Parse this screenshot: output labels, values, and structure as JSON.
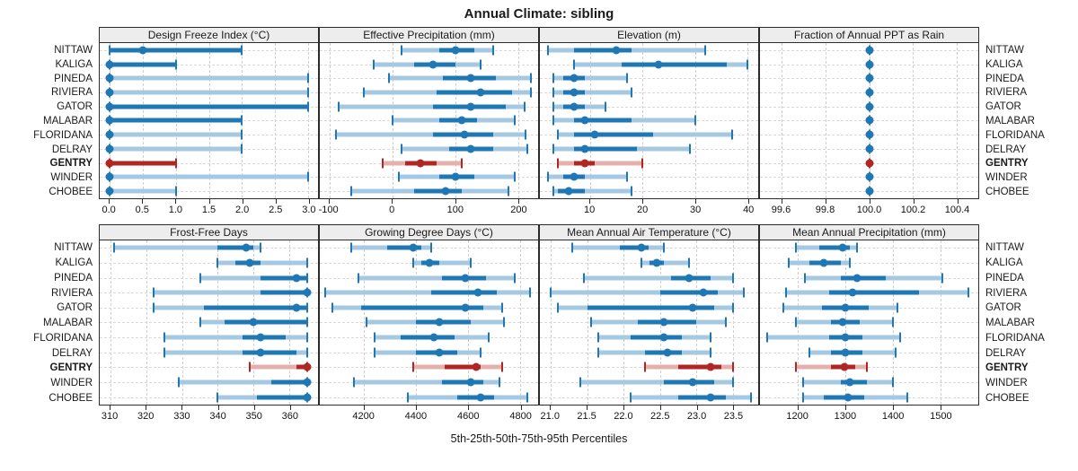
{
  "title": "Annual Climate: sibling",
  "footer": "5th-25th-50th-75th-95th Percentiles",
  "stations": [
    "NITTAW",
    "KALIGA",
    "PINEDA",
    "RIVIERA",
    "GATOR",
    "MALABAR",
    "FLORIDANA",
    "DELRAY",
    "GENTRY",
    "WINDER",
    "CHOBEE"
  ],
  "highlight_station": "GENTRY",
  "colors": {
    "blue": "#1f77b4",
    "blue_light": "#a5c9e3",
    "red": "#b12622",
    "red_light": "#e5b0ac",
    "panel_border": "#2b2b2b",
    "header_bg": "#ededed",
    "grid": "#cfcfcf"
  },
  "chart_data": {
    "type": "scatter",
    "subtype": "percentile-dotplot",
    "percentiles": [
      "5th",
      "25th",
      "50th",
      "75th",
      "95th"
    ],
    "legend_note": "values per station are [p5,p25,p50,p75,p95]; GENTRY highlighted red",
    "grid": "dashed",
    "panels": [
      {
        "row": 0,
        "title": "Design Freeze Index (°C)",
        "xlim": [
          -0.15,
          3.15
        ],
        "tick_values": [
          0,
          0.5,
          1,
          1.5,
          2,
          2.5,
          3
        ],
        "tick_labels": [
          "0.0",
          "0.5",
          "1.0",
          "1.5",
          "2.0",
          "2.5",
          "3.0"
        ],
        "series": [
          [
            0,
            0,
            0.5,
            2,
            2
          ],
          [
            0,
            0,
            0,
            1,
            1
          ],
          [
            0,
            0,
            0,
            0,
            3
          ],
          [
            0,
            0,
            0,
            0,
            3
          ],
          [
            0,
            0,
            0,
            3,
            3
          ],
          [
            0,
            0,
            0,
            2,
            2
          ],
          [
            0,
            0,
            0,
            0,
            2
          ],
          [
            0,
            0,
            0,
            0,
            2
          ],
          [
            0,
            0,
            0,
            1,
            1
          ],
          [
            0,
            0,
            0,
            0,
            3
          ],
          [
            0,
            0,
            0,
            0,
            1
          ]
        ]
      },
      {
        "row": 0,
        "title": "Effective Precipitation (mm)",
        "xlim": [
          -115,
          232
        ],
        "tick_values": [
          -100,
          0,
          100,
          200
        ],
        "tick_labels": [
          "-100",
          "0",
          "100",
          "200"
        ],
        "series": [
          [
            15,
            75,
            100,
            130,
            160
          ],
          [
            -30,
            35,
            65,
            100,
            140
          ],
          [
            -5,
            80,
            125,
            165,
            220
          ],
          [
            -45,
            70,
            140,
            190,
            220
          ],
          [
            -85,
            65,
            125,
            180,
            210
          ],
          [
            0,
            75,
            110,
            135,
            195
          ],
          [
            -90,
            65,
            115,
            160,
            212
          ],
          [
            15,
            90,
            125,
            160,
            215
          ],
          [
            -15,
            20,
            45,
            70,
            110
          ],
          [
            10,
            75,
            100,
            130,
            195
          ],
          [
            -65,
            35,
            85,
            110,
            185
          ]
        ]
      },
      {
        "row": 0,
        "title": "Elevation (m)",
        "xlim": [
          0.5,
          42
        ],
        "tick_values": [
          10,
          20,
          30,
          40
        ],
        "tick_labels": [
          "10",
          "20",
          "30",
          "40"
        ],
        "series": [
          [
            2,
            7,
            15,
            18,
            32
          ],
          [
            7,
            16,
            23,
            36,
            40
          ],
          [
            3,
            5,
            7,
            9,
            17
          ],
          [
            3,
            5,
            7,
            9,
            18
          ],
          [
            3,
            5,
            7,
            9,
            13
          ],
          [
            3,
            7,
            9,
            18,
            30
          ],
          [
            4,
            7,
            11,
            22,
            37
          ],
          [
            3,
            7,
            9,
            19,
            29
          ],
          [
            4,
            7,
            9,
            11,
            20
          ],
          [
            2,
            5,
            7,
            9,
            17
          ],
          [
            3,
            4,
            6,
            9,
            18
          ]
        ]
      },
      {
        "row": 0,
        "title": "Fraction of Annual PPT as Rain",
        "xlim": [
          99.5,
          100.5
        ],
        "tick_values": [
          99.6,
          99.8,
          100.0,
          100.2,
          100.4
        ],
        "tick_labels": [
          "99.6",
          "99.8",
          "100.0",
          "100.2",
          "100.4"
        ],
        "series": [
          [
            100,
            100,
            100,
            100,
            100
          ],
          [
            100,
            100,
            100,
            100,
            100
          ],
          [
            100,
            100,
            100,
            100,
            100
          ],
          [
            100,
            100,
            100,
            100,
            100
          ],
          [
            100,
            100,
            100,
            100,
            100
          ],
          [
            100,
            100,
            100,
            100,
            100
          ],
          [
            100,
            100,
            100,
            100,
            100
          ],
          [
            100,
            100,
            100,
            100,
            100
          ],
          [
            100,
            100,
            100,
            100,
            100
          ],
          [
            100,
            100,
            100,
            100,
            100
          ],
          [
            100,
            100,
            100,
            100,
            100
          ]
        ]
      },
      {
        "row": 1,
        "title": "Frost-Free Days",
        "xlim": [
          307,
          368
        ],
        "tick_values": [
          310,
          320,
          330,
          340,
          350,
          360
        ],
        "tick_labels": [
          "310",
          "320",
          "330",
          "340",
          "350",
          "360"
        ],
        "series": [
          [
            311,
            340,
            348,
            350,
            352
          ],
          [
            340,
            345,
            349,
            352,
            365
          ],
          [
            335,
            352,
            362,
            365,
            365
          ],
          [
            322,
            352,
            365,
            365,
            365
          ],
          [
            322,
            336,
            362,
            365,
            365
          ],
          [
            335,
            342,
            350,
            365,
            365
          ],
          [
            325,
            347,
            352,
            359,
            365
          ],
          [
            325,
            347,
            352,
            362,
            365
          ],
          [
            349,
            362,
            365,
            365,
            365
          ],
          [
            329,
            355,
            365,
            365,
            365
          ],
          [
            340,
            351,
            365,
            365,
            365
          ]
        ]
      },
      {
        "row": 1,
        "title": "Growing Degree Days (°C)",
        "xlim": [
          4030,
          4870
        ],
        "tick_values": [
          4200,
          4400,
          4600,
          4800
        ],
        "tick_labels": [
          "4200",
          "4400",
          "4600",
          "4800"
        ],
        "series": [
          [
            4150,
            4290,
            4390,
            4420,
            4460
          ],
          [
            4390,
            4420,
            4450,
            4490,
            4610
          ],
          [
            4180,
            4500,
            4590,
            4670,
            4780
          ],
          [
            4050,
            4460,
            4640,
            4710,
            4840
          ],
          [
            4080,
            4190,
            4590,
            4660,
            4730
          ],
          [
            4210,
            4400,
            4490,
            4610,
            4740
          ],
          [
            4240,
            4340,
            4470,
            4550,
            4680
          ],
          [
            4240,
            4400,
            4490,
            4560,
            4650
          ],
          [
            4390,
            4510,
            4630,
            4650,
            4730
          ],
          [
            4160,
            4500,
            4610,
            4660,
            4720
          ],
          [
            4370,
            4560,
            4650,
            4700,
            4830
          ]
        ]
      },
      {
        "row": 1,
        "title": "Mean Annual Air Temperature (°C)",
        "xlim": [
          20.85,
          23.85
        ],
        "tick_values": [
          21.0,
          21.5,
          22.0,
          22.5,
          23.0,
          23.5
        ],
        "tick_labels": [
          "21.0",
          "21.5",
          "22.0",
          "22.5",
          "23.0",
          "23.5"
        ],
        "series": [
          [
            21.3,
            21.95,
            22.25,
            22.35,
            22.55
          ],
          [
            22.25,
            22.35,
            22.45,
            22.55,
            22.9
          ],
          [
            21.45,
            22.65,
            22.9,
            23.2,
            23.5
          ],
          [
            21.0,
            22.5,
            23.1,
            23.3,
            23.65
          ],
          [
            21.1,
            21.5,
            22.95,
            23.25,
            23.5
          ],
          [
            21.55,
            22.2,
            22.55,
            23.0,
            23.4
          ],
          [
            21.65,
            22.1,
            22.55,
            22.8,
            23.2
          ],
          [
            21.65,
            22.3,
            22.6,
            22.8,
            23.2
          ],
          [
            22.3,
            22.75,
            23.2,
            23.35,
            23.5
          ],
          [
            21.4,
            22.55,
            22.95,
            23.25,
            23.5
          ],
          [
            22.1,
            22.75,
            23.2,
            23.4,
            23.75
          ]
        ]
      },
      {
        "row": 1,
        "title": "Mean Annual Precipitation (mm)",
        "xlim": [
          1120,
          1580
        ],
        "tick_values": [
          1200,
          1300,
          1400,
          1500
        ],
        "tick_labels": [
          "1200",
          "1300",
          "1400",
          "1500"
        ],
        "series": [
          [
            1195,
            1245,
            1295,
            1310,
            1325
          ],
          [
            1180,
            1225,
            1255,
            1290,
            1310
          ],
          [
            1215,
            1290,
            1325,
            1385,
            1505
          ],
          [
            1175,
            1265,
            1315,
            1455,
            1560
          ],
          [
            1170,
            1250,
            1300,
            1350,
            1410
          ],
          [
            1195,
            1270,
            1295,
            1330,
            1400
          ],
          [
            1135,
            1265,
            1300,
            1335,
            1415
          ],
          [
            1225,
            1270,
            1300,
            1335,
            1405
          ],
          [
            1195,
            1270,
            1298,
            1320,
            1345
          ],
          [
            1210,
            1290,
            1310,
            1345,
            1400
          ],
          [
            1210,
            1255,
            1305,
            1340,
            1430
          ]
        ]
      }
    ]
  }
}
